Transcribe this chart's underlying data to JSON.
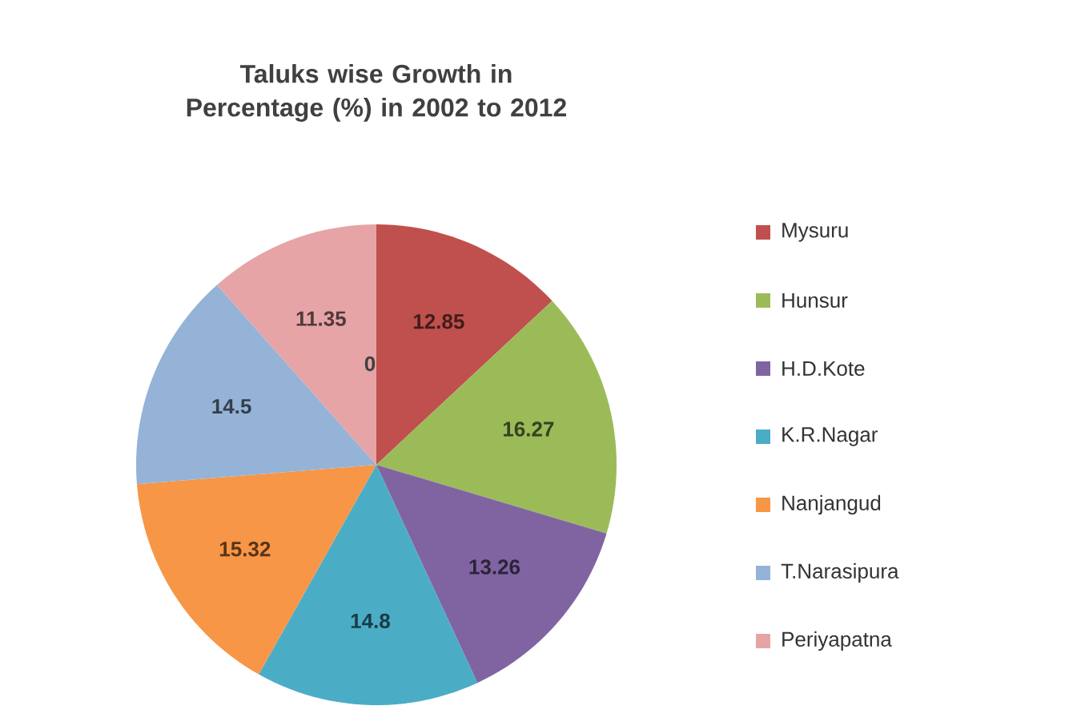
{
  "chart_data": {
    "type": "pie",
    "title": "Taluks wise Growth in Percentage (%) in 2002 to 2012",
    "categories": [
      "Mysuru",
      "Hunsur",
      "H.D.Kote",
      "K.R.Nagar",
      "Nanjangud",
      "T.Narasipura",
      "Periyapatna"
    ],
    "values": [
      12.85,
      16.27,
      13.26,
      14.8,
      15.32,
      14.5,
      11.35
    ],
    "colors": [
      "#c0504d",
      "#9bbb59",
      "#8064a2",
      "#4bacc6",
      "#f79646",
      "#95b3d7",
      "#e6a4a6"
    ],
    "annotations": [
      "0"
    ],
    "data_labels": true,
    "legend": "right"
  }
}
